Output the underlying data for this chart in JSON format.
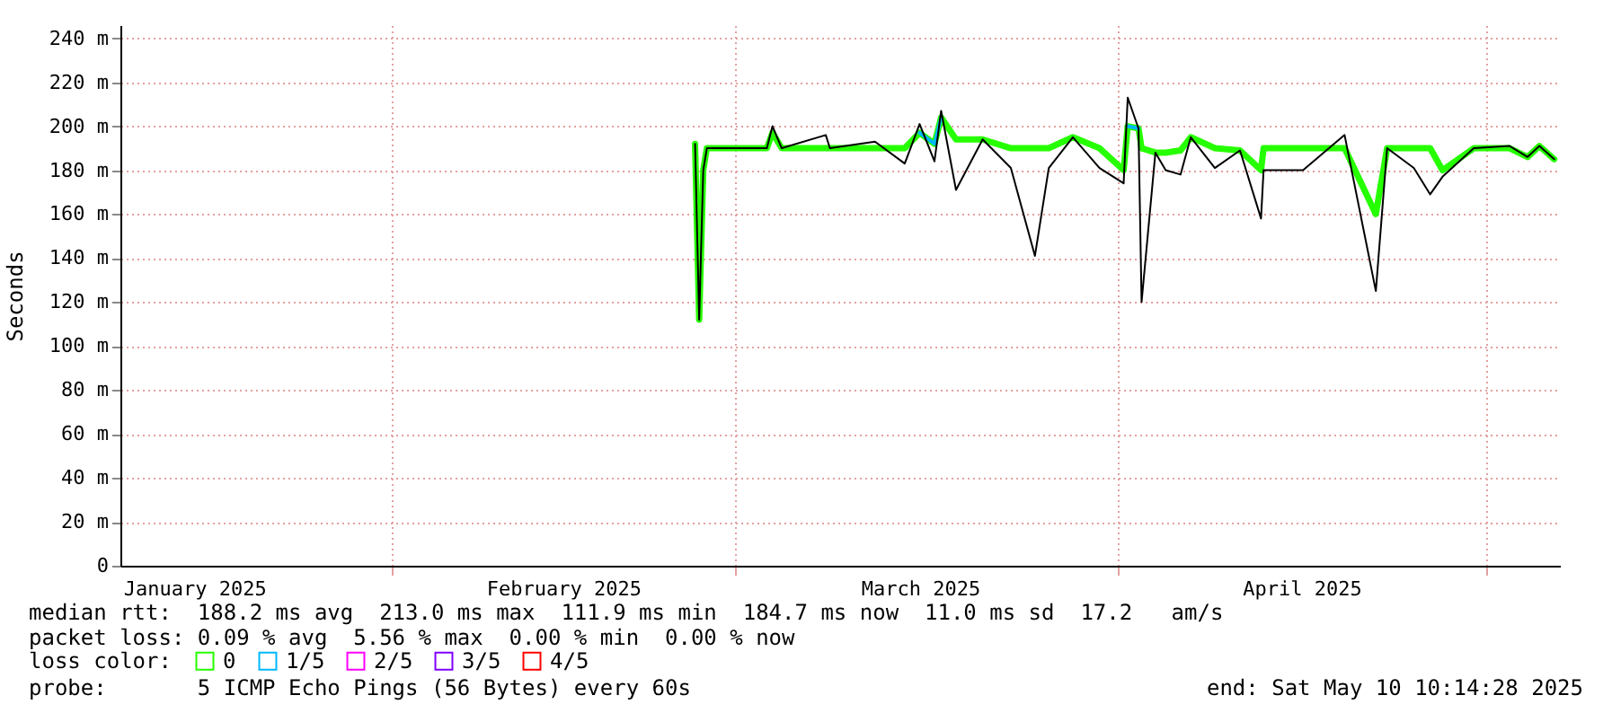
{
  "chart_data": {
    "type": "line",
    "ylabel": "Seconds",
    "legend_title": "loss color:",
    "legend": "bottom",
    "grid": true,
    "line_style": "solid",
    "annotations": [
      "median rtt:  188.2 ms avg  213.0 ms max  111.9 ms min  184.7 ms now  11.0 ms sd  17.2   am/s",
      "packet loss: 0.09 % avg  5.56 % max  0.00 % min  0.00 % now",
      "probe:       5 ICMP Echo Pings (56 Bytes) every 60s",
      "end: Sat May 10 10:14:28 2025"
    ],
    "xlim": [
      "2025-01-10",
      "2025-05-07"
    ],
    "xticks": [
      {
        "value": "2025-02-01",
        "label": null
      },
      {
        "value": "2025-03-01",
        "label": null
      },
      {
        "value": "2025-04-01",
        "label": null
      },
      {
        "value": "2025-05-01",
        "label": null
      },
      {
        "value": "2025-01-16",
        "label": "January 2025"
      },
      {
        "value": "2025-02-15",
        "label": "February 2025"
      },
      {
        "value": "2025-03-16",
        "label": "March 2025"
      },
      {
        "value": "2025-04-16",
        "label": "April 2025"
      }
    ],
    "ylim": [
      0,
      246
    ],
    "yticks": [
      0,
      {
        "value": 20,
        "label": "20 m"
      },
      {
        "value": 40,
        "label": "40 m"
      },
      {
        "value": 60,
        "label": "60 m"
      },
      {
        "value": 80,
        "label": "80 m"
      },
      {
        "value": 100,
        "label": "100 m"
      },
      {
        "value": 120,
        "label": "120 m"
      },
      {
        "value": 140,
        "label": "140 m"
      },
      {
        "value": 160,
        "label": "160 m"
      },
      {
        "value": 180,
        "label": "180 m"
      },
      {
        "value": 200,
        "label": "200 m"
      },
      {
        "value": 220,
        "label": "220 m"
      },
      {
        "value": 240,
        "label": "240 m"
      }
    ],
    "x": [
      "2025-02-25T17:00",
      "2025-02-26T01:00",
      "2025-02-26T09:00",
      "2025-02-26T16:00",
      "2025-03-03T13:00",
      "2025-03-04T00:00",
      "2025-03-04T18:00",
      "2025-03-08T08:00",
      "2025-03-08T16:00",
      "2025-03-12T08:00",
      "2025-03-14T18:00",
      "2025-03-15T23:00",
      "2025-03-17T04:00",
      "2025-03-17T17:00",
      "2025-03-18T22:00",
      "2025-03-21T02:00",
      "2025-03-23T09:00",
      "2025-03-25T08:00",
      "2025-03-26T11:00",
      "2025-03-28T10:00",
      "2025-03-30T14:00",
      "2025-04-01T13:00",
      "2025-04-01T21:00",
      "2025-04-02T18:00",
      "2025-04-03T00:00",
      "2025-04-04T03:00",
      "2025-04-04T23:00",
      "2025-04-06T04:00",
      "2025-04-07T00:00",
      "2025-04-08T23:00",
      "2025-04-11T00:00",
      "2025-04-12T17:00",
      "2025-04-12T22:00",
      "2025-04-16T03:00",
      "2025-04-19T12:00",
      "2025-04-22T01:00",
      "2025-04-22T23:00",
      "2025-04-25T03:00",
      "2025-04-26T11:00",
      "2025-04-27T11:00",
      "2025-04-30T00:00",
      "2025-05-02T22:00",
      "2025-05-04T09:00",
      "2025-05-05T08:00",
      "2025-05-06T13:00"
    ],
    "series": [
      {
        "color": "#000000",
        "values": [
          192,
          112,
          180,
          190,
          190,
          200,
          190,
          196,
          190,
          193,
          183,
          201,
          184,
          207,
          171,
          194,
          181,
          141,
          181,
          195,
          181,
          174,
          213,
          199,
          120,
          188,
          180,
          178,
          195,
          181,
          189,
          158,
          180,
          180,
          196,
          125,
          190,
          181,
          169,
          177,
          190,
          191,
          186,
          191,
          185
        ]
      },
      {
        "name": "0",
        "color": "#26ff00",
        "values": [
          192,
          112,
          180,
          190,
          190,
          197,
          190,
          190,
          190,
          190,
          190,
          197,
          192,
          204,
          194,
          194,
          190,
          190,
          190,
          195,
          190,
          180,
          200,
          199,
          190,
          188,
          188,
          189,
          195,
          190,
          189,
          180,
          190,
          190,
          190,
          160,
          190,
          190,
          190,
          180,
          190,
          190,
          186,
          191,
          185
        ]
      },
      {
        "name": "1/5",
        "color": "#00b8ff",
        "values": [
          null,
          null,
          null,
          null,
          null,
          null,
          null,
          null,
          null,
          null,
          null,
          197,
          192,
          204,
          null,
          null,
          null,
          null,
          null,
          null,
          null,
          null,
          200,
          199,
          null,
          null,
          null,
          null,
          null,
          null,
          null,
          null,
          null,
          null,
          null,
          null,
          null,
          null,
          null,
          null,
          null,
          null,
          null,
          null,
          null
        ]
      },
      {
        "name": "2/5",
        "color": "#ff00fe",
        "values": [
          null,
          null,
          null,
          null,
          null,
          null,
          null,
          null,
          null,
          null,
          null,
          null,
          null,
          null,
          null,
          null,
          null,
          null,
          null,
          null,
          null,
          null,
          null,
          null,
          null,
          null,
          null,
          null,
          null,
          null,
          null,
          null,
          null,
          null,
          null,
          null,
          null,
          null,
          null,
          null,
          null,
          null,
          null,
          null,
          null
        ]
      },
      {
        "name": "3/5",
        "color": "#7e00ff",
        "values": [
          null,
          null,
          null,
          null,
          null,
          null,
          null,
          null,
          null,
          null,
          null,
          null,
          null,
          null,
          null,
          null,
          null,
          null,
          null,
          null,
          null,
          null,
          null,
          null,
          null,
          null,
          null,
          null,
          null,
          null,
          null,
          null,
          null,
          null,
          null,
          null,
          null,
          null,
          null,
          null,
          null,
          null,
          null,
          null,
          null
        ]
      },
      {
        "name": "4/5",
        "color": "#ff0000",
        "values": [
          null,
          null,
          null,
          null,
          null,
          null,
          null,
          null,
          null,
          null,
          null,
          null,
          null,
          null,
          null,
          null,
          null,
          null,
          null,
          null,
          null,
          null,
          null,
          null,
          null,
          null,
          null,
          null,
          null,
          null,
          null,
          null,
          null,
          null,
          null,
          null,
          null,
          null,
          null,
          null,
          null,
          null,
          null,
          null,
          null
        ]
      }
    ]
  }
}
